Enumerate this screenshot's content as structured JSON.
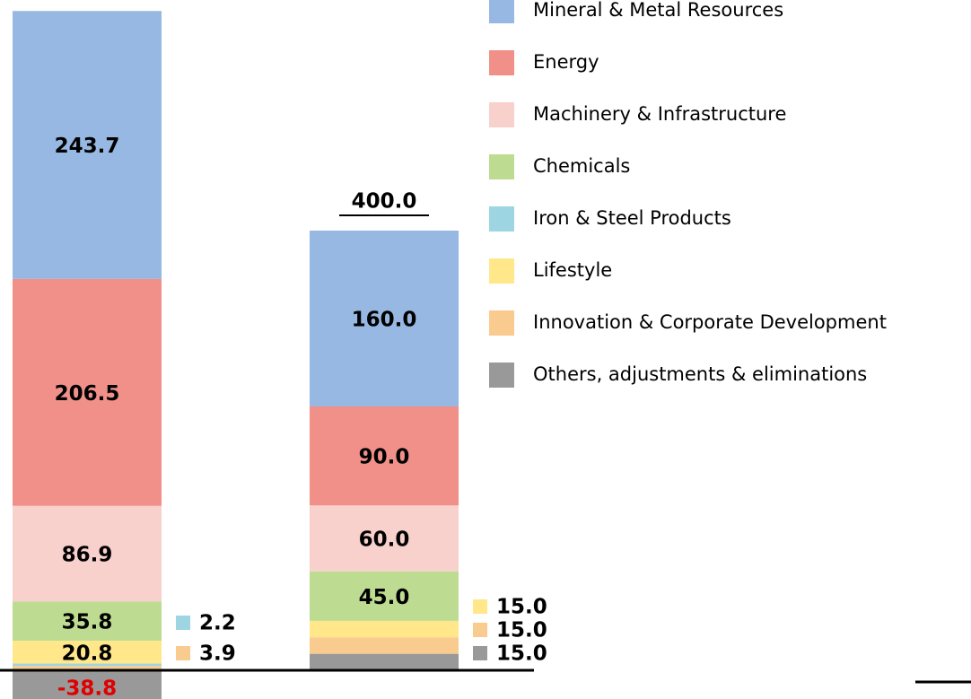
{
  "chart_data": {
    "type": "stacked_bar",
    "categories": [
      null,
      null
    ],
    "total_labels": [
      null,
      "400.0"
    ],
    "series": [
      {
        "name": "Others, adjustments & eliminations",
        "color": "#999999",
        "values": [
          -38.8,
          15
        ],
        "value_labels": [
          "-38.8",
          "15.0"
        ]
      },
      {
        "name": "Innovation & Corporate Development",
        "color": "#f9cb8f",
        "values": [
          3.9,
          15
        ],
        "value_labels": [
          "3.9",
          "15.0"
        ]
      },
      {
        "name": "Iron & Steel Products",
        "color": "#9dd5e3",
        "values": [
          2.2,
          null
        ],
        "value_labels": [
          "2.2",
          null
        ]
      },
      {
        "name": "Lifestyle",
        "color": "#ffe78a",
        "values": [
          20.8,
          15
        ],
        "value_labels": [
          "20.8",
          "15.0"
        ]
      },
      {
        "name": "Chemicals",
        "color": "#bddc91",
        "values": [
          35.8,
          45
        ],
        "value_labels": [
          "35.8",
          "45.0"
        ]
      },
      {
        "name": "Machinery & Infrastructure",
        "color": "#f8d0cc",
        "values": [
          86.9,
          60
        ],
        "value_labels": [
          "86.9",
          "60.0"
        ]
      },
      {
        "name": "Energy",
        "color": "#f09089",
        "values": [
          206.5,
          90
        ],
        "value_labels": [
          "206.5",
          "90.0"
        ]
      },
      {
        "name": "Mineral & Metal Resources",
        "color": "#96b8e2",
        "values": [
          243.7,
          160
        ],
        "value_labels": [
          "243.7",
          "160.0"
        ]
      }
    ],
    "legend_order": [
      7,
      6,
      5,
      4,
      2,
      3,
      1,
      0
    ]
  }
}
